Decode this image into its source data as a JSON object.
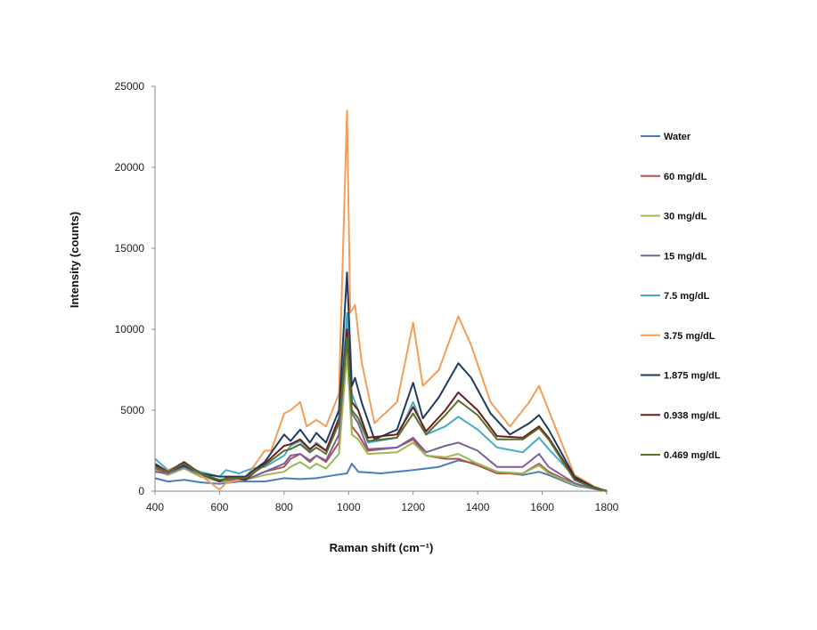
{
  "chart_data": {
    "type": "line",
    "xlabel": "Raman shift (cm⁻¹)",
    "ylabel": "Intensity (counts)",
    "xlim": [
      400,
      1800
    ],
    "ylim": [
      0,
      25000
    ],
    "xticks": [
      400,
      600,
      800,
      1000,
      1200,
      1400,
      1600,
      1800
    ],
    "yticks": [
      0,
      5000,
      10000,
      15000,
      20000,
      25000
    ],
    "grid": false,
    "legend_position": "right",
    "series": [
      {
        "name": "Water",
        "color": "#4a7ebb",
        "points": [
          [
            400,
            800
          ],
          [
            440,
            600
          ],
          [
            490,
            700
          ],
          [
            540,
            550
          ],
          [
            600,
            450
          ],
          [
            660,
            600
          ],
          [
            740,
            600
          ],
          [
            800,
            800
          ],
          [
            850,
            750
          ],
          [
            900,
            800
          ],
          [
            960,
            1000
          ],
          [
            995,
            1100
          ],
          [
            1010,
            1700
          ],
          [
            1030,
            1200
          ],
          [
            1100,
            1100
          ],
          [
            1200,
            1300
          ],
          [
            1280,
            1500
          ],
          [
            1340,
            1900
          ],
          [
            1400,
            1700
          ],
          [
            1460,
            1200
          ],
          [
            1540,
            1000
          ],
          [
            1590,
            1200
          ],
          [
            1620,
            1000
          ],
          [
            1700,
            350
          ],
          [
            1760,
            150
          ],
          [
            1800,
            50
          ]
        ]
      },
      {
        "name": "60 mg/dL",
        "color": "#b3504a",
        "points": [
          [
            400,
            1400
          ],
          [
            440,
            1100
          ],
          [
            490,
            1700
          ],
          [
            540,
            1000
          ],
          [
            600,
            600
          ],
          [
            630,
            700
          ],
          [
            680,
            700
          ],
          [
            740,
            1200
          ],
          [
            800,
            1500
          ],
          [
            820,
            2000
          ],
          [
            850,
            2300
          ],
          [
            880,
            1800
          ],
          [
            900,
            2200
          ],
          [
            930,
            1800
          ],
          [
            970,
            3000
          ],
          [
            995,
            9000
          ],
          [
            1010,
            4000
          ],
          [
            1030,
            3500
          ],
          [
            1060,
            2500
          ],
          [
            1150,
            2700
          ],
          [
            1200,
            3200
          ],
          [
            1240,
            2200
          ],
          [
            1300,
            2000
          ],
          [
            1340,
            2000
          ],
          [
            1400,
            1600
          ],
          [
            1460,
            1100
          ],
          [
            1540,
            1100
          ],
          [
            1590,
            1700
          ],
          [
            1620,
            1200
          ],
          [
            1700,
            450
          ],
          [
            1760,
            150
          ],
          [
            1800,
            0
          ]
        ]
      },
      {
        "name": "30 mg/dL",
        "color": "#98b954",
        "points": [
          [
            400,
            1300
          ],
          [
            440,
            1000
          ],
          [
            490,
            1400
          ],
          [
            540,
            900
          ],
          [
            600,
            600
          ],
          [
            630,
            600
          ],
          [
            680,
            700
          ],
          [
            740,
            1000
          ],
          [
            800,
            1200
          ],
          [
            820,
            1500
          ],
          [
            850,
            1800
          ],
          [
            880,
            1400
          ],
          [
            900,
            1700
          ],
          [
            930,
            1400
          ],
          [
            970,
            2300
          ],
          [
            995,
            8500
          ],
          [
            1010,
            3500
          ],
          [
            1030,
            3200
          ],
          [
            1060,
            2300
          ],
          [
            1150,
            2400
          ],
          [
            1200,
            3000
          ],
          [
            1240,
            2200
          ],
          [
            1300,
            2100
          ],
          [
            1340,
            2300
          ],
          [
            1400,
            1700
          ],
          [
            1460,
            1200
          ],
          [
            1540,
            1100
          ],
          [
            1590,
            1600
          ],
          [
            1620,
            1100
          ],
          [
            1700,
            400
          ],
          [
            1760,
            150
          ],
          [
            1800,
            0
          ]
        ]
      },
      {
        "name": "15 mg/dL",
        "color": "#7d60a0",
        "points": [
          [
            400,
            1200
          ],
          [
            440,
            1100
          ],
          [
            490,
            1500
          ],
          [
            540,
            1000
          ],
          [
            600,
            700
          ],
          [
            630,
            700
          ],
          [
            680,
            700
          ],
          [
            740,
            1200
          ],
          [
            800,
            1700
          ],
          [
            820,
            2200
          ],
          [
            850,
            2300
          ],
          [
            880,
            1900
          ],
          [
            900,
            2200
          ],
          [
            930,
            1900
          ],
          [
            970,
            3500
          ],
          [
            995,
            9500
          ],
          [
            1010,
            4800
          ],
          [
            1030,
            4200
          ],
          [
            1060,
            2600
          ],
          [
            1150,
            2700
          ],
          [
            1200,
            3300
          ],
          [
            1240,
            2400
          ],
          [
            1300,
            2800
          ],
          [
            1340,
            3000
          ],
          [
            1400,
            2500
          ],
          [
            1460,
            1500
          ],
          [
            1540,
            1500
          ],
          [
            1590,
            2300
          ],
          [
            1620,
            1500
          ],
          [
            1700,
            500
          ],
          [
            1760,
            150
          ],
          [
            1800,
            0
          ]
        ]
      },
      {
        "name": "7.5 mg/dL",
        "color": "#46aac4",
        "points": [
          [
            400,
            2000
          ],
          [
            440,
            1300
          ],
          [
            490,
            1600
          ],
          [
            540,
            1200
          ],
          [
            600,
            900
          ],
          [
            620,
            1300
          ],
          [
            660,
            1100
          ],
          [
            700,
            1400
          ],
          [
            740,
            1500
          ],
          [
            800,
            2200
          ],
          [
            820,
            2800
          ],
          [
            850,
            3100
          ],
          [
            880,
            2500
          ],
          [
            900,
            3000
          ],
          [
            930,
            2500
          ],
          [
            970,
            4200
          ],
          [
            995,
            11000
          ],
          [
            1010,
            6000
          ],
          [
            1030,
            5000
          ],
          [
            1060,
            3000
          ],
          [
            1150,
            3300
          ],
          [
            1200,
            5500
          ],
          [
            1240,
            3500
          ],
          [
            1300,
            4000
          ],
          [
            1340,
            4600
          ],
          [
            1400,
            3800
          ],
          [
            1460,
            2700
          ],
          [
            1540,
            2400
          ],
          [
            1590,
            3300
          ],
          [
            1620,
            2600
          ],
          [
            1700,
            900
          ],
          [
            1760,
            250
          ],
          [
            1800,
            0
          ]
        ]
      },
      {
        "name": "3.75 mg/dL",
        "color": "#f59d56",
        "points": [
          [
            400,
            1500
          ],
          [
            440,
            1300
          ],
          [
            490,
            1700
          ],
          [
            540,
            1000
          ],
          [
            600,
            100
          ],
          [
            620,
            500
          ],
          [
            680,
            800
          ],
          [
            740,
            2500
          ],
          [
            760,
            2500
          ],
          [
            800,
            4800
          ],
          [
            820,
            5000
          ],
          [
            850,
            5500
          ],
          [
            870,
            4000
          ],
          [
            900,
            4400
          ],
          [
            930,
            4000
          ],
          [
            970,
            6000
          ],
          [
            995,
            23500
          ],
          [
            1005,
            11000
          ],
          [
            1020,
            11500
          ],
          [
            1040,
            8000
          ],
          [
            1080,
            4200
          ],
          [
            1150,
            5500
          ],
          [
            1200,
            10400
          ],
          [
            1230,
            6500
          ],
          [
            1280,
            7500
          ],
          [
            1340,
            10800
          ],
          [
            1380,
            9000
          ],
          [
            1440,
            5500
          ],
          [
            1500,
            4000
          ],
          [
            1560,
            5500
          ],
          [
            1590,
            6500
          ],
          [
            1620,
            5000
          ],
          [
            1700,
            1000
          ],
          [
            1760,
            300
          ],
          [
            1800,
            0
          ]
        ]
      },
      {
        "name": "1.875 mg/dL",
        "color": "#1f3b60",
        "points": [
          [
            400,
            1700
          ],
          [
            440,
            1200
          ],
          [
            490,
            1600
          ],
          [
            540,
            1100
          ],
          [
            600,
            900
          ],
          [
            620,
            900
          ],
          [
            680,
            900
          ],
          [
            740,
            1800
          ],
          [
            800,
            3500
          ],
          [
            820,
            3100
          ],
          [
            850,
            3800
          ],
          [
            880,
            3000
          ],
          [
            900,
            3600
          ],
          [
            930,
            3000
          ],
          [
            970,
            5000
          ],
          [
            995,
            13500
          ],
          [
            1010,
            6500
          ],
          [
            1020,
            7000
          ],
          [
            1040,
            5500
          ],
          [
            1080,
            3200
          ],
          [
            1150,
            3800
          ],
          [
            1200,
            6700
          ],
          [
            1230,
            4500
          ],
          [
            1280,
            5800
          ],
          [
            1340,
            7900
          ],
          [
            1380,
            7000
          ],
          [
            1440,
            4800
          ],
          [
            1500,
            3500
          ],
          [
            1560,
            4200
          ],
          [
            1590,
            4700
          ],
          [
            1620,
            3800
          ],
          [
            1700,
            900
          ],
          [
            1760,
            250
          ],
          [
            1800,
            0
          ]
        ]
      },
      {
        "name": "0.938 mg/dL",
        "color": "#6b1e22",
        "points": [
          [
            400,
            1600
          ],
          [
            440,
            1200
          ],
          [
            490,
            1800
          ],
          [
            540,
            1100
          ],
          [
            600,
            600
          ],
          [
            630,
            900
          ],
          [
            680,
            700
          ],
          [
            740,
            1700
          ],
          [
            800,
            2800
          ],
          [
            820,
            2900
          ],
          [
            850,
            3200
          ],
          [
            880,
            2600
          ],
          [
            900,
            2900
          ],
          [
            930,
            2500
          ],
          [
            970,
            4500
          ],
          [
            995,
            10000
          ],
          [
            1010,
            5500
          ],
          [
            1030,
            5000
          ],
          [
            1060,
            3300
          ],
          [
            1150,
            3500
          ],
          [
            1200,
            5200
          ],
          [
            1240,
            3700
          ],
          [
            1300,
            5000
          ],
          [
            1340,
            6100
          ],
          [
            1400,
            5000
          ],
          [
            1460,
            3400
          ],
          [
            1540,
            3300
          ],
          [
            1590,
            4000
          ],
          [
            1620,
            3300
          ],
          [
            1700,
            800
          ],
          [
            1760,
            200
          ],
          [
            1800,
            0
          ]
        ]
      },
      {
        "name": "0.469 mg/dL",
        "color": "#55702a",
        "points": [
          [
            400,
            1500
          ],
          [
            440,
            1200
          ],
          [
            490,
            1700
          ],
          [
            540,
            1100
          ],
          [
            600,
            700
          ],
          [
            630,
            800
          ],
          [
            680,
            800
          ],
          [
            740,
            1600
          ],
          [
            800,
            2500
          ],
          [
            820,
            2600
          ],
          [
            850,
            2900
          ],
          [
            880,
            2400
          ],
          [
            900,
            2700
          ],
          [
            930,
            2300
          ],
          [
            970,
            4200
          ],
          [
            995,
            9500
          ],
          [
            1010,
            5000
          ],
          [
            1030,
            4500
          ],
          [
            1060,
            3100
          ],
          [
            1150,
            3300
          ],
          [
            1200,
            4800
          ],
          [
            1240,
            3500
          ],
          [
            1300,
            4700
          ],
          [
            1340,
            5600
          ],
          [
            1400,
            4700
          ],
          [
            1460,
            3200
          ],
          [
            1540,
            3200
          ],
          [
            1590,
            3900
          ],
          [
            1620,
            3200
          ],
          [
            1700,
            700
          ],
          [
            1760,
            200
          ],
          [
            1800,
            0
          ]
        ]
      }
    ]
  }
}
